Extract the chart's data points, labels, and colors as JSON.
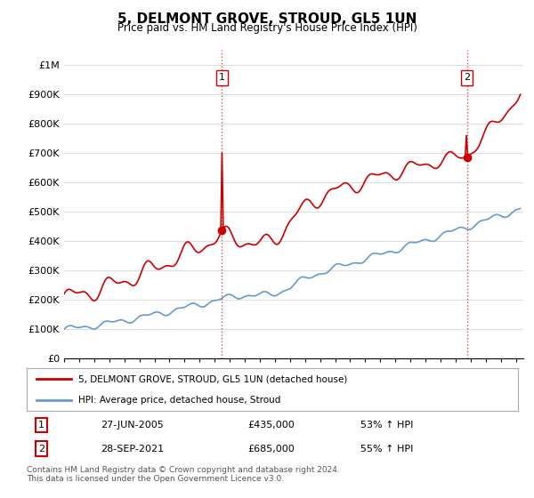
{
  "title": "5, DELMONT GROVE, STROUD, GL5 1UN",
  "subtitle": "Price paid vs. HM Land Registry's House Price Index (HPI)",
  "ylabel_ticks": [
    "£0",
    "£100K",
    "£200K",
    "£300K",
    "£400K",
    "£500K",
    "£600K",
    "£700K",
    "£800K",
    "£900K",
    "£1M"
  ],
  "ytick_values": [
    0,
    100000,
    200000,
    300000,
    400000,
    500000,
    600000,
    700000,
    800000,
    900000,
    1000000
  ],
  "ylim": [
    0,
    1050000
  ],
  "xlim_start": 1995.0,
  "xlim_end": 2025.5,
  "sale1_x": 2005.487,
  "sale1_y": 435000,
  "sale2_x": 2021.747,
  "sale2_y": 685000,
  "sale1_label": "27-JUN-2005",
  "sale1_price": "£435,000",
  "sale1_hpi": "53% ↑ HPI",
  "sale2_label": "28-SEP-2021",
  "sale2_price": "£685,000",
  "sale2_hpi": "55% ↑ HPI",
  "legend_line1": "5, DELMONT GROVE, STROUD, GL5 1UN (detached house)",
  "legend_line2": "HPI: Average price, detached house, Stroud",
  "footnote": "Contains HM Land Registry data © Crown copyright and database right 2024.\nThis data is licensed under the Open Government Licence v3.0.",
  "line_color_red": "#cc0000",
  "line_color_blue": "#6699cc",
  "background_color": "#ffffff",
  "grid_color": "#dddddd"
}
